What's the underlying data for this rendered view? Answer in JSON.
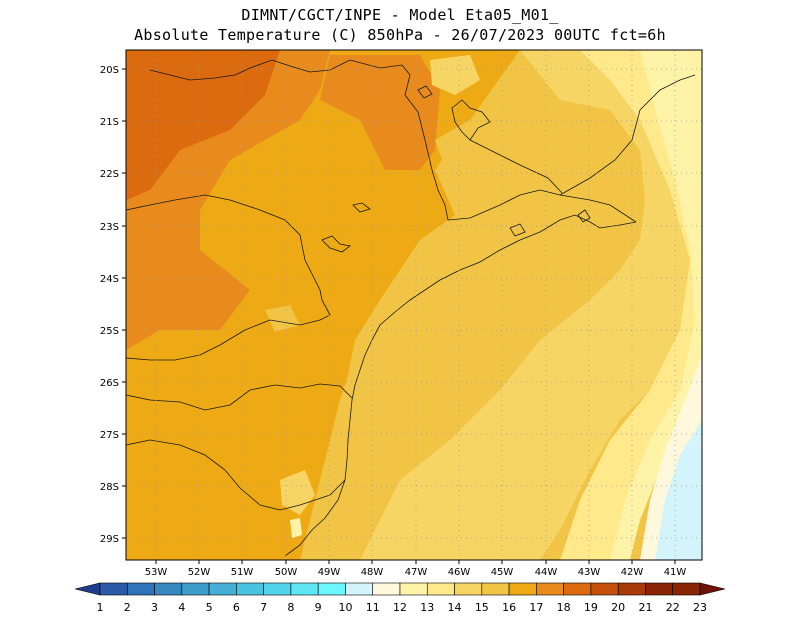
{
  "header": {
    "line1": "DIMNT/CGCT/INPE -  Model Eta05_M01_",
    "line2": "Absolute Temperature (C) 850hPa -  26/07/2023 00UTC fct=6h"
  },
  "map": {
    "lat_labels": [
      "20S",
      "21S",
      "22S",
      "23S",
      "24S",
      "25S",
      "26S",
      "27S",
      "28S",
      "29S"
    ],
    "lon_labels": [
      "53W",
      "52W",
      "51W",
      "50W",
      "49W",
      "48W",
      "47W",
      "46W",
      "45W",
      "44W",
      "43W",
      "42W",
      "41W"
    ]
  },
  "colorbar": {
    "labels": [
      "1",
      "2",
      "3",
      "4",
      "5",
      "6",
      "7",
      "8",
      "9",
      "10",
      "11",
      "12",
      "13",
      "14",
      "15",
      "16",
      "17",
      "18",
      "19",
      "20",
      "21",
      "22",
      "23"
    ],
    "colors": [
      "#1f3d8f",
      "#2a5aa8",
      "#2f73b8",
      "#3787c0",
      "#3e9ccb",
      "#44b0d6",
      "#4ac3e0",
      "#52d4ea",
      "#5ee6f4",
      "#6cf6fd",
      "#d4f4fb",
      "#fff8dc",
      "#fff3a8",
      "#ffe98a",
      "#f7d565",
      "#f1c445",
      "#eeaa14",
      "#e88b1c",
      "#dc6a0f",
      "#c5500c",
      "#a83b08",
      "#8a2506",
      "#6e1204"
    ]
  }
}
